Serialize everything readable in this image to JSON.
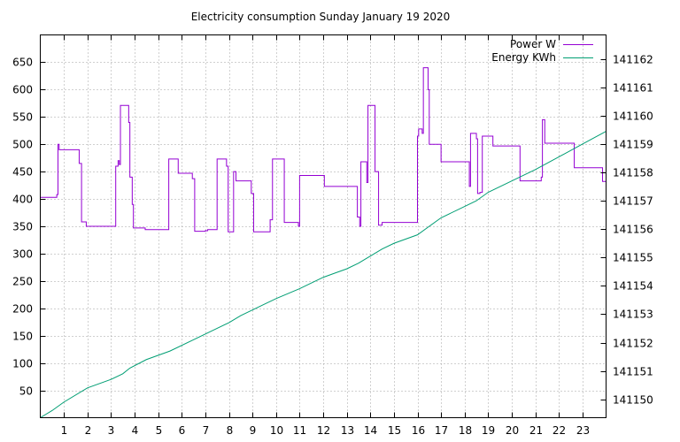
{
  "chart_data": {
    "type": "line",
    "title": "Electricity consumption Sunday January 19 2020",
    "x_range": [
      0,
      24
    ],
    "x_ticks": [
      1,
      2,
      3,
      4,
      5,
      6,
      7,
      8,
      9,
      10,
      11,
      12,
      13,
      14,
      15,
      16,
      17,
      18,
      19,
      20,
      21,
      22,
      23
    ],
    "y_left": {
      "range": [
        0,
        700
      ],
      "ticks": [
        50,
        100,
        150,
        200,
        250,
        300,
        350,
        400,
        450,
        500,
        550,
        600,
        650
      ]
    },
    "y_right": {
      "range": [
        141149.35,
        141162.85
      ],
      "ticks": [
        141150,
        141151,
        141152,
        141153,
        141154,
        141155,
        141156,
        141157,
        141158,
        141159,
        141160,
        141161,
        141162
      ]
    },
    "grid": true,
    "legend_position": "top-right",
    "series": [
      {
        "name": "Power W",
        "axis": "left",
        "color": "#9400d3",
        "step": true,
        "points": [
          [
            0,
            403
          ],
          [
            0.7,
            408
          ],
          [
            0.75,
            500
          ],
          [
            0.8,
            490
          ],
          [
            1.65,
            465
          ],
          [
            1.75,
            358
          ],
          [
            1.95,
            350
          ],
          [
            3.2,
            460
          ],
          [
            3.3,
            470
          ],
          [
            3.35,
            463
          ],
          [
            3.4,
            571
          ],
          [
            3.75,
            540
          ],
          [
            3.8,
            440
          ],
          [
            3.9,
            390
          ],
          [
            3.95,
            347
          ],
          [
            4.45,
            344
          ],
          [
            5.45,
            473
          ],
          [
            5.85,
            447
          ],
          [
            6.45,
            437
          ],
          [
            6.55,
            341
          ],
          [
            7.0,
            342
          ],
          [
            7.1,
            344
          ],
          [
            7.5,
            473
          ],
          [
            7.9,
            460
          ],
          [
            7.97,
            340
          ],
          [
            8.2,
            450
          ],
          [
            8.3,
            433
          ],
          [
            8.95,
            410
          ],
          [
            9.05,
            340
          ],
          [
            9.75,
            362
          ],
          [
            9.85,
            473
          ],
          [
            10.35,
            357
          ],
          [
            10.95,
            350
          ],
          [
            11.0,
            443
          ],
          [
            12.0,
            443
          ],
          [
            12.05,
            423
          ],
          [
            13.35,
            423
          ],
          [
            13.45,
            367
          ],
          [
            13.55,
            350
          ],
          [
            13.6,
            468
          ],
          [
            13.85,
            430
          ],
          [
            13.9,
            571
          ],
          [
            14.2,
            450
          ],
          [
            14.35,
            352
          ],
          [
            14.5,
            357
          ],
          [
            16.0,
            515
          ],
          [
            16.05,
            528
          ],
          [
            16.2,
            520
          ],
          [
            16.25,
            640
          ],
          [
            16.45,
            600
          ],
          [
            16.5,
            500
          ],
          [
            17.0,
            468
          ],
          [
            18.2,
            423
          ],
          [
            18.25,
            520
          ],
          [
            18.5,
            510
          ],
          [
            18.55,
            410
          ],
          [
            18.65,
            412
          ],
          [
            18.75,
            515
          ],
          [
            19.2,
            497
          ],
          [
            20.35,
            433
          ],
          [
            21.25,
            440
          ],
          [
            21.3,
            545
          ],
          [
            21.4,
            502
          ],
          [
            22.65,
            457
          ],
          [
            23.85,
            432
          ],
          [
            24,
            432
          ]
        ]
      },
      {
        "name": "Energy KWh",
        "axis": "right",
        "color": "#009e73",
        "step": false,
        "points": [
          [
            0,
            141149.35
          ],
          [
            0.5,
            141149.6
          ],
          [
            1.0,
            141149.9
          ],
          [
            2.0,
            141150.4
          ],
          [
            3.0,
            141150.7
          ],
          [
            3.5,
            141150.9
          ],
          [
            3.8,
            141151.1
          ],
          [
            4.5,
            141151.4
          ],
          [
            5.5,
            141151.7
          ],
          [
            6.5,
            141152.1
          ],
          [
            7.5,
            141152.5
          ],
          [
            8.0,
            141152.7
          ],
          [
            8.5,
            141152.95
          ],
          [
            9.5,
            141153.35
          ],
          [
            10.0,
            141153.55
          ],
          [
            11.0,
            141153.9
          ],
          [
            12.0,
            141154.3
          ],
          [
            13.0,
            141154.6
          ],
          [
            13.5,
            141154.8
          ],
          [
            14.0,
            141155.05
          ],
          [
            14.5,
            141155.3
          ],
          [
            15.0,
            141155.5
          ],
          [
            16.0,
            141155.8
          ],
          [
            16.5,
            141156.1
          ],
          [
            17.0,
            141156.4
          ],
          [
            18.0,
            141156.8
          ],
          [
            18.5,
            141157.0
          ],
          [
            19.0,
            141157.3
          ],
          [
            20.0,
            141157.7
          ],
          [
            21.0,
            141158.1
          ],
          [
            22.0,
            141158.55
          ],
          [
            23.0,
            141159.0
          ],
          [
            24.0,
            141159.45
          ]
        ]
      }
    ]
  }
}
